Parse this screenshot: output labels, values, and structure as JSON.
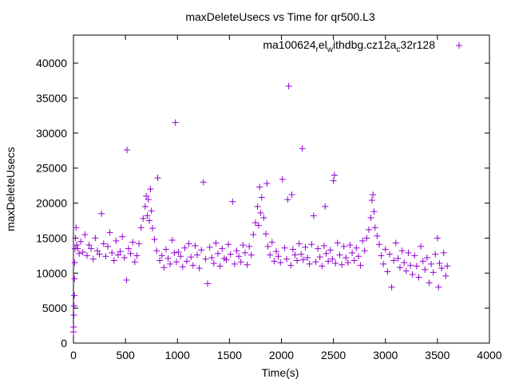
{
  "chart_data": {
    "type": "scatter",
    "title": "maxDeleteUsecs vs Time for qr500.L3",
    "xlabel": "Time(s)",
    "ylabel": "maxDeleteUsecs",
    "xlim": [
      0,
      4000
    ],
    "ylim": [
      0,
      44000
    ],
    "x_ticks": [
      0,
      500,
      1000,
      1500,
      2000,
      2500,
      3000,
      3500,
      4000
    ],
    "y_ticks": [
      0,
      5000,
      10000,
      15000,
      20000,
      25000,
      30000,
      35000,
      40000
    ],
    "grid": false,
    "legend_position": "top-right",
    "marker": "+",
    "series": [
      {
        "name": "ma100624_rel_withdbg.cz12a_c32r128",
        "legend_parts": [
          "ma100624",
          "r",
          "el",
          "w",
          "ithdbg.cz12a",
          "c",
          "32r128"
        ],
        "color": "#9400d3",
        "points": [
          [
            0,
            1600
          ],
          [
            2,
            2300
          ],
          [
            4,
            4000
          ],
          [
            6,
            5300
          ],
          [
            8,
            6800
          ],
          [
            10,
            9200
          ],
          [
            12,
            11500
          ],
          [
            15,
            13500
          ],
          [
            20,
            15000
          ],
          [
            25,
            16500
          ],
          [
            30,
            14000
          ],
          [
            40,
            13500
          ],
          [
            55,
            12800
          ],
          [
            70,
            14500
          ],
          [
            90,
            13000
          ],
          [
            110,
            15500
          ],
          [
            130,
            12500
          ],
          [
            150,
            14000
          ],
          [
            170,
            13500
          ],
          [
            190,
            12000
          ],
          [
            210,
            15000
          ],
          [
            230,
            13200
          ],
          [
            250,
            12700
          ],
          [
            270,
            18500
          ],
          [
            290,
            14200
          ],
          [
            310,
            12400
          ],
          [
            330,
            13800
          ],
          [
            350,
            15800
          ],
          [
            370,
            12900
          ],
          [
            390,
            11800
          ],
          [
            410,
            14600
          ],
          [
            430,
            12600
          ],
          [
            450,
            13100
          ],
          [
            470,
            15200
          ],
          [
            490,
            12200
          ],
          [
            510,
            9000
          ],
          [
            515,
            27600
          ],
          [
            530,
            13500
          ],
          [
            550,
            12800
          ],
          [
            570,
            14400
          ],
          [
            590,
            11600
          ],
          [
            610,
            12500
          ],
          [
            630,
            14200
          ],
          [
            650,
            16500
          ],
          [
            670,
            17800
          ],
          [
            690,
            19500
          ],
          [
            700,
            21000
          ],
          [
            710,
            18200
          ],
          [
            720,
            20500
          ],
          [
            730,
            17500
          ],
          [
            740,
            22000
          ],
          [
            750,
            18900
          ],
          [
            760,
            16400
          ],
          [
            780,
            14800
          ],
          [
            800,
            13200
          ],
          [
            810,
            23600
          ],
          [
            830,
            11800
          ],
          [
            850,
            12500
          ],
          [
            870,
            10800
          ],
          [
            890,
            13400
          ],
          [
            910,
            12100
          ],
          [
            930,
            11300
          ],
          [
            950,
            14700
          ],
          [
            970,
            12900
          ],
          [
            980,
            31500
          ],
          [
            990,
            11600
          ],
          [
            1010,
            13000
          ],
          [
            1030,
            12400
          ],
          [
            1050,
            10900
          ],
          [
            1070,
            13600
          ],
          [
            1090,
            11700
          ],
          [
            1110,
            14200
          ],
          [
            1130,
            12300
          ],
          [
            1150,
            11100
          ],
          [
            1170,
            13900
          ],
          [
            1190,
            12600
          ],
          [
            1210,
            10700
          ],
          [
            1230,
            13300
          ],
          [
            1250,
            23000
          ],
          [
            1270,
            12000
          ],
          [
            1290,
            8500
          ],
          [
            1310,
            13700
          ],
          [
            1330,
            12200
          ],
          [
            1350,
            11400
          ],
          [
            1370,
            14300
          ],
          [
            1390,
            12800
          ],
          [
            1410,
            11000
          ],
          [
            1430,
            13500
          ],
          [
            1450,
            12100
          ],
          [
            1470,
            11900
          ],
          [
            1490,
            14100
          ],
          [
            1510,
            12700
          ],
          [
            1530,
            20200
          ],
          [
            1550,
            11300
          ],
          [
            1570,
            13200
          ],
          [
            1590,
            12400
          ],
          [
            1610,
            11600
          ],
          [
            1630,
            14000
          ],
          [
            1650,
            12900
          ],
          [
            1670,
            11200
          ],
          [
            1690,
            13800
          ],
          [
            1710,
            12600
          ],
          [
            1730,
            15500
          ],
          [
            1750,
            17200
          ],
          [
            1770,
            19500
          ],
          [
            1780,
            16800
          ],
          [
            1790,
            22300
          ],
          [
            1800,
            18600
          ],
          [
            1810,
            20800
          ],
          [
            1830,
            17900
          ],
          [
            1850,
            15600
          ],
          [
            1860,
            22800
          ],
          [
            1870,
            13800
          ],
          [
            1890,
            12600
          ],
          [
            1910,
            14400
          ],
          [
            1930,
            11700
          ],
          [
            1950,
            13100
          ],
          [
            1970,
            12400
          ],
          [
            1990,
            11500
          ],
          [
            2010,
            23400
          ],
          [
            2030,
            13600
          ],
          [
            2050,
            12000
          ],
          [
            2060,
            20500
          ],
          [
            2070,
            36700
          ],
          [
            2090,
            11100
          ],
          [
            2100,
            21200
          ],
          [
            2110,
            13400
          ],
          [
            2130,
            12600
          ],
          [
            2150,
            11800
          ],
          [
            2170,
            14200
          ],
          [
            2190,
            12700
          ],
          [
            2200,
            27800
          ],
          [
            2210,
            11900
          ],
          [
            2230,
            13700
          ],
          [
            2250,
            12200
          ],
          [
            2270,
            11300
          ],
          [
            2290,
            14100
          ],
          [
            2310,
            18200
          ],
          [
            2330,
            11600
          ],
          [
            2350,
            13500
          ],
          [
            2370,
            12300
          ],
          [
            2390,
            11000
          ],
          [
            2410,
            13900
          ],
          [
            2420,
            19500
          ],
          [
            2430,
            12800
          ],
          [
            2450,
            11700
          ],
          [
            2470,
            13300
          ],
          [
            2490,
            12000
          ],
          [
            2500,
            23200
          ],
          [
            2510,
            24000
          ],
          [
            2520,
            11400
          ],
          [
            2540,
            14300
          ],
          [
            2560,
            12600
          ],
          [
            2580,
            11200
          ],
          [
            2600,
            13800
          ],
          [
            2620,
            12200
          ],
          [
            2640,
            11500
          ],
          [
            2660,
            14000
          ],
          [
            2680,
            12900
          ],
          [
            2700,
            11800
          ],
          [
            2720,
            13600
          ],
          [
            2740,
            12400
          ],
          [
            2760,
            11100
          ],
          [
            2780,
            14600
          ],
          [
            2800,
            13200
          ],
          [
            2820,
            15000
          ],
          [
            2840,
            16200
          ],
          [
            2860,
            17900
          ],
          [
            2870,
            20400
          ],
          [
            2880,
            21200
          ],
          [
            2890,
            18800
          ],
          [
            2900,
            16500
          ],
          [
            2920,
            15300
          ],
          [
            2940,
            14100
          ],
          [
            2960,
            12500
          ],
          [
            2980,
            11300
          ],
          [
            3000,
            13400
          ],
          [
            3020,
            10200
          ],
          [
            3040,
            12700
          ],
          [
            3060,
            8000
          ],
          [
            3080,
            11800
          ],
          [
            3100,
            14300
          ],
          [
            3120,
            12100
          ],
          [
            3140,
            10800
          ],
          [
            3160,
            13200
          ],
          [
            3180,
            11500
          ],
          [
            3200,
            10300
          ],
          [
            3220,
            12900
          ],
          [
            3240,
            11100
          ],
          [
            3260,
            9800
          ],
          [
            3280,
            12500
          ],
          [
            3300,
            11000
          ],
          [
            3320,
            9400
          ],
          [
            3340,
            13800
          ],
          [
            3360,
            11700
          ],
          [
            3380,
            10500
          ],
          [
            3400,
            12200
          ],
          [
            3420,
            8600
          ],
          [
            3440,
            11300
          ],
          [
            3460,
            10100
          ],
          [
            3480,
            12700
          ],
          [
            3500,
            15000
          ],
          [
            3510,
            8000
          ],
          [
            3520,
            11400
          ],
          [
            3540,
            10700
          ],
          [
            3560,
            12900
          ],
          [
            3580,
            9600
          ],
          [
            3595,
            11000
          ]
        ]
      }
    ]
  }
}
